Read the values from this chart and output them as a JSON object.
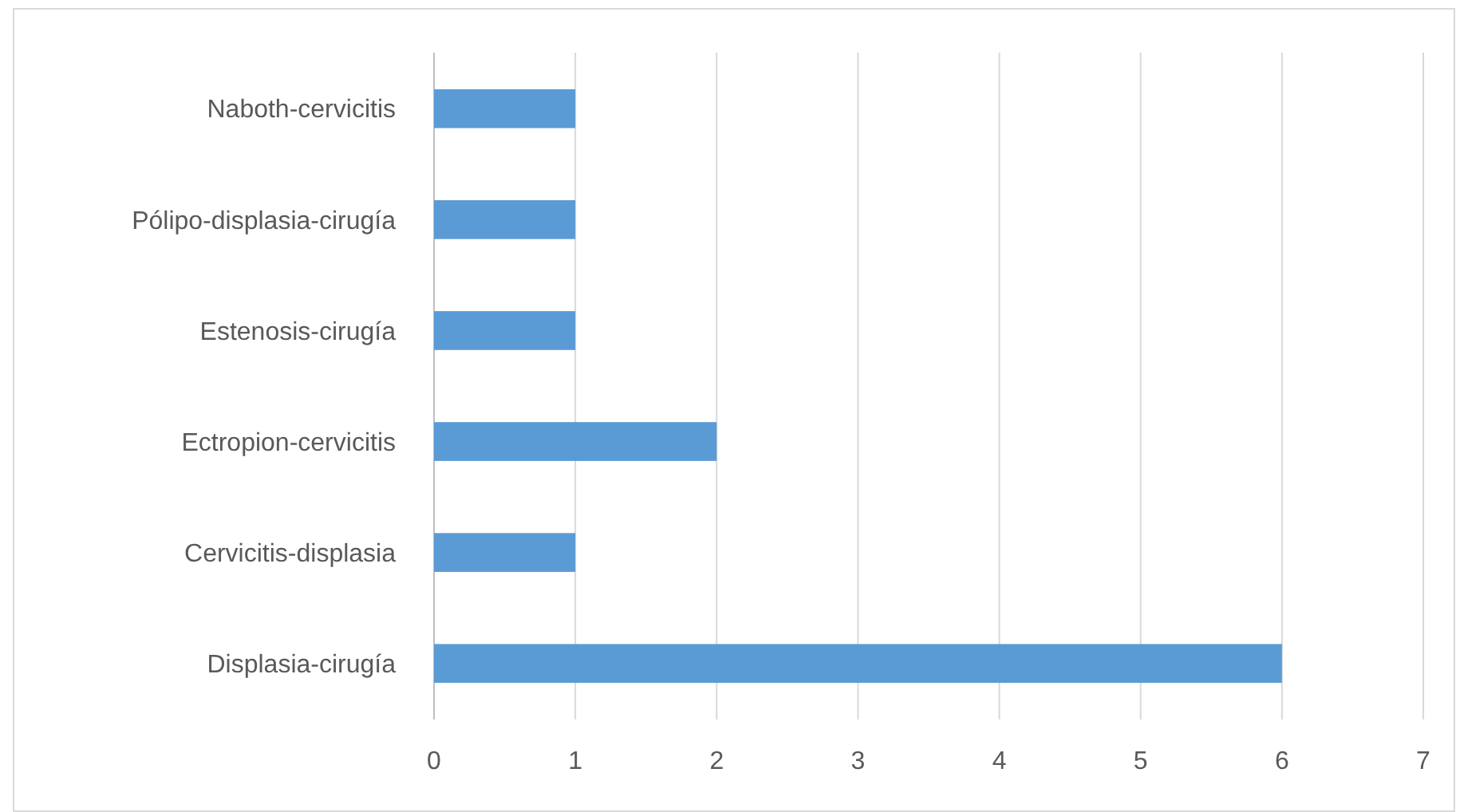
{
  "chart_data": {
    "type": "bar",
    "orientation": "horizontal",
    "categories": [
      "Naboth-cervicitis",
      "Pólipo-displasia-cirugía",
      "Estenosis-cirugía",
      "Ectropion-cervicitis",
      "Cervicitis-displasia",
      "Displasia-cirugía"
    ],
    "values": [
      1,
      1,
      1,
      2,
      1,
      6
    ],
    "color": "#5b9bd5",
    "xlim": [
      0,
      7
    ],
    "xticks": [
      0,
      1,
      2,
      3,
      4,
      5,
      6,
      7
    ],
    "grid": "x"
  }
}
